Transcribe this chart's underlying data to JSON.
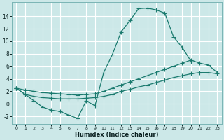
{
  "xlabel": "Humidex (Indice chaleur)",
  "xlim": [
    -0.5,
    23.5
  ],
  "ylim": [
    -3.2,
    16.2
  ],
  "bg_color": "#cce8e8",
  "grid_color": "#ffffff",
  "line_color": "#1a7a6e",
  "lx1": [
    0,
    1,
    2,
    3,
    4,
    5,
    6,
    7,
    8,
    9,
    10,
    11,
    12,
    13,
    14,
    15,
    16,
    17,
    18,
    19,
    20
  ],
  "ly1": [
    2.5,
    1.5,
    0.5,
    -0.5,
    -1.0,
    -1.2,
    -1.8,
    -2.3,
    0.5,
    -0.3,
    5.0,
    7.9,
    11.5,
    13.3,
    15.2,
    15.3,
    15.0,
    14.5,
    10.7,
    9.0,
    6.8
  ],
  "lx2": [
    0,
    1,
    2,
    3,
    4,
    5,
    6,
    7,
    8,
    9,
    10,
    11,
    12,
    13,
    14,
    15,
    16,
    17,
    18,
    19,
    20,
    21,
    22,
    23
  ],
  "ly2": [
    2.5,
    2.2,
    2.0,
    1.8,
    1.7,
    1.6,
    1.5,
    1.4,
    1.5,
    1.6,
    2.0,
    2.5,
    3.0,
    3.5,
    4.0,
    4.5,
    5.0,
    5.5,
    6.0,
    6.5,
    7.0,
    6.5,
    6.2,
    5.0
  ],
  "lx3": [
    0,
    1,
    2,
    3,
    4,
    5,
    6,
    7,
    8,
    9,
    10,
    11,
    12,
    13,
    14,
    15,
    16,
    17,
    18,
    19,
    20,
    21,
    22,
    23
  ],
  "ly3": [
    2.5,
    1.5,
    1.2,
    1.0,
    0.9,
    0.8,
    0.8,
    0.8,
    0.9,
    1.0,
    1.2,
    1.5,
    2.0,
    2.3,
    2.7,
    3.0,
    3.4,
    3.8,
    4.2,
    4.5,
    4.8,
    5.0,
    5.0,
    4.8
  ],
  "yticks": [
    -2,
    0,
    2,
    4,
    6,
    8,
    10,
    12,
    14
  ]
}
